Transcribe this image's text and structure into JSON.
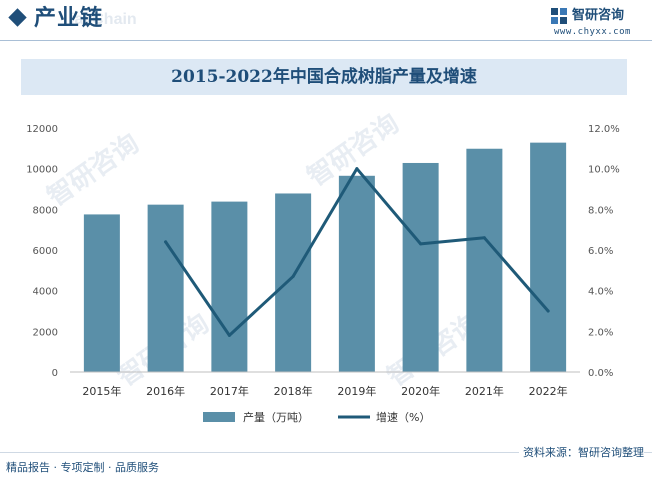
{
  "header": {
    "section_title": "产业链",
    "ghost_title": "ial Chain",
    "brand_name": "智研咨询",
    "brand_url": "www.chyxx.com"
  },
  "colors": {
    "bar": "#5a8fa8",
    "line": "#1f5a78",
    "brand": "#1f4e79",
    "banner": "#dce8f4"
  },
  "chart_data": {
    "type": "bar",
    "title": "2015-2022年中国合成树脂产量及增速",
    "categories": [
      "2015年",
      "2016年",
      "2017年",
      "2018年",
      "2019年",
      "2020年",
      "2021年",
      "2022年"
    ],
    "series": [
      {
        "name": "产量（万吨）",
        "type": "bar",
        "axis": "left",
        "values": [
          7750,
          8230,
          8380,
          8780,
          9650,
          10280,
          10980,
          11280
        ]
      },
      {
        "name": "增速（%）",
        "type": "line",
        "axis": "right",
        "values": [
          null,
          6.4,
          1.8,
          4.7,
          10.0,
          6.3,
          6.6,
          3.0
        ]
      }
    ],
    "y_left": {
      "min": 0,
      "max": 12000,
      "ticks": [
        "0",
        "2000",
        "4000",
        "6000",
        "8000",
        "10000",
        "12000"
      ]
    },
    "y_right": {
      "min": 0,
      "max": 12,
      "ticks": [
        "0.0%",
        "2.0%",
        "4.0%",
        "6.0%",
        "8.0%",
        "10.0%",
        "12.0%"
      ]
    },
    "grid": false,
    "legend_position": "bottom"
  },
  "legend": {
    "bar_label": "产量（万吨）",
    "line_label": "增速（%）"
  },
  "footer": {
    "source": "资料来源：智研咨询整理",
    "services": "精品报告 · 专项定制 · 品质服务"
  }
}
